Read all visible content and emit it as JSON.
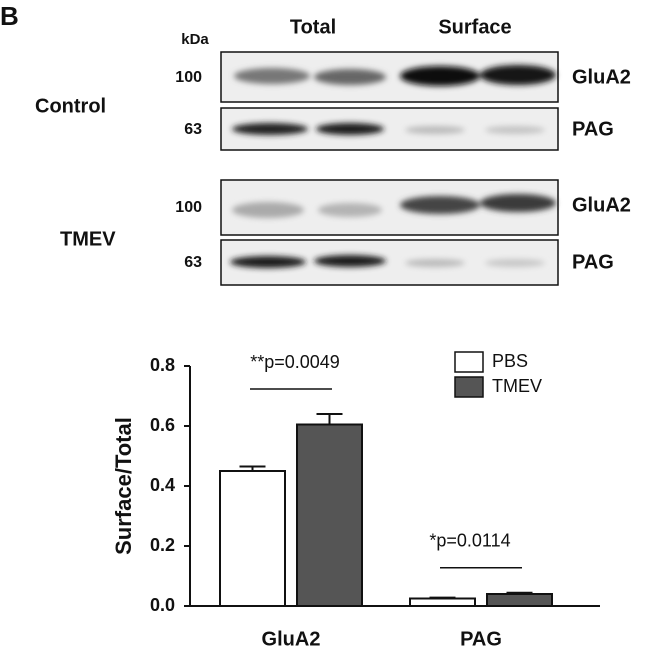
{
  "blot": {
    "panel_label": "B",
    "unit": "kDa",
    "column_headers": [
      "Total",
      "Surface"
    ],
    "groups": [
      {
        "label": "Control",
        "rows": [
          {
            "marker": "100",
            "protein": "GluA2"
          },
          {
            "marker": "63",
            "protein": "PAG"
          }
        ]
      },
      {
        "label": "TMEV",
        "rows": [
          {
            "marker": "100",
            "protein": "GluA2"
          },
          {
            "marker": "63",
            "protein": "PAG"
          }
        ]
      }
    ]
  },
  "chart_data": {
    "type": "bar",
    "ylabel": "Surface/Total",
    "categories": [
      "GluA2",
      "PAG"
    ],
    "series": [
      {
        "name": "PBS",
        "color": "#ffffff",
        "values": [
          0.45,
          0.025
        ],
        "errors": [
          0.015,
          0.003
        ]
      },
      {
        "name": "TMEV",
        "color": "#555555",
        "values": [
          0.605,
          0.04
        ],
        "errors": [
          0.035,
          0.004
        ]
      }
    ],
    "annotations": [
      "**p=0.0049",
      "*p=0.0114"
    ],
    "ylim": [
      0,
      0.8
    ],
    "yticks": [
      {
        "value": 0,
        "label": "0.0"
      },
      0.2,
      0.4,
      0.6,
      0.8
    ],
    "legend": "upper right"
  }
}
